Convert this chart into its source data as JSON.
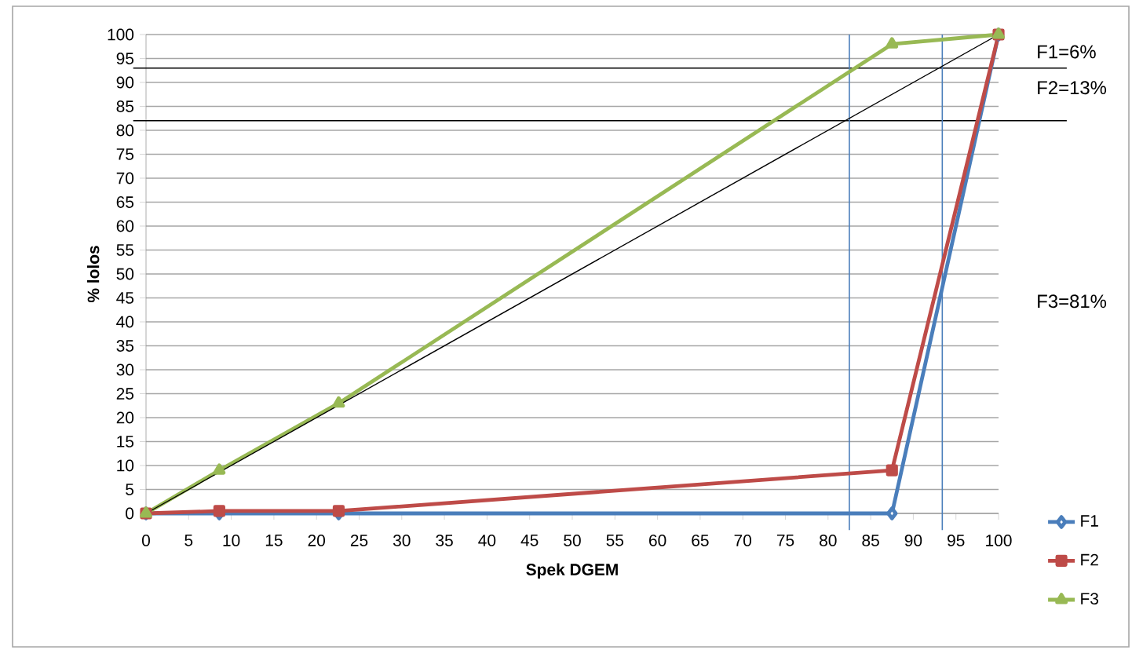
{
  "chart_data": {
    "type": "line",
    "xlabel": "Spek DGEM",
    "ylabel": "% lolos",
    "x": [
      0,
      8.6,
      22.6,
      87.5,
      100
    ],
    "series": [
      {
        "name": "F1",
        "color": "#4a7ebb",
        "marker": "diamond",
        "values": [
          0,
          0,
          0,
          0,
          100
        ]
      },
      {
        "name": "F2",
        "color": "#be4b48",
        "marker": "square",
        "values": [
          0,
          0.5,
          0.5,
          9,
          100
        ]
      },
      {
        "name": "F3",
        "color": "#98b954",
        "marker": "triangle",
        "values": [
          0,
          9,
          23,
          98,
          100
        ]
      },
      {
        "color": "#000000",
        "marker": "none",
        "x": [
          0,
          100
        ],
        "values": [
          0,
          100
        ]
      }
    ],
    "xlim": [
      0,
      100
    ],
    "ylim": [
      0,
      100
    ],
    "xticks": [
      0,
      5,
      10,
      15,
      20,
      25,
      30,
      35,
      40,
      45,
      50,
      55,
      60,
      65,
      70,
      75,
      80,
      85,
      90,
      95,
      100
    ],
    "yticks": [
      0,
      5,
      10,
      15,
      20,
      25,
      30,
      35,
      40,
      45,
      50,
      55,
      60,
      65,
      70,
      75,
      80,
      85,
      90,
      95,
      100
    ],
    "grid": "y",
    "legend": "bottom right",
    "ref_lines": [
      {
        "axis": "y",
        "value": 93,
        "color": "#000000"
      },
      {
        "axis": "y",
        "value": 82,
        "color": "#000000"
      },
      {
        "axis": "x",
        "value": 82.5,
        "color": "#4a7ebb"
      },
      {
        "axis": "x",
        "value": 93.4,
        "color": "#4a7ebb"
      }
    ],
    "annotations": [
      "F1=6%",
      "F2=13%",
      "F3=81%"
    ]
  }
}
